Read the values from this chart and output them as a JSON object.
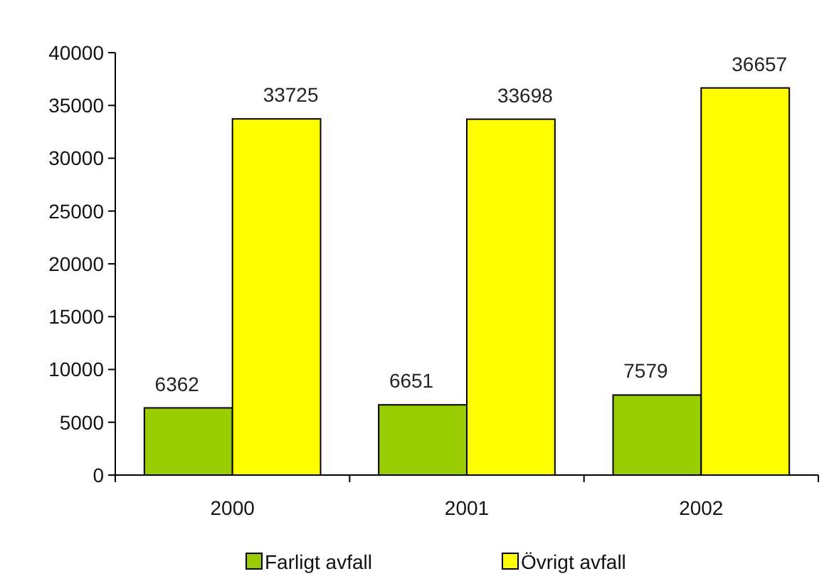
{
  "chart_data": {
    "type": "bar",
    "categories": [
      "2000",
      "2001",
      "2002"
    ],
    "series": [
      {
        "name": "Farligt avfall",
        "color": "#99cc00",
        "values": [
          6362,
          6651,
          7579
        ]
      },
      {
        "name": "Övrigt avfall",
        "color": "#ffff00",
        "values": [
          33725,
          33698,
          36657
        ]
      }
    ],
    "ylim": [
      0,
      40000
    ],
    "yticks": [
      0,
      5000,
      10000,
      15000,
      20000,
      25000,
      30000,
      35000,
      40000
    ],
    "data_labels": true,
    "legend": "bottom"
  }
}
